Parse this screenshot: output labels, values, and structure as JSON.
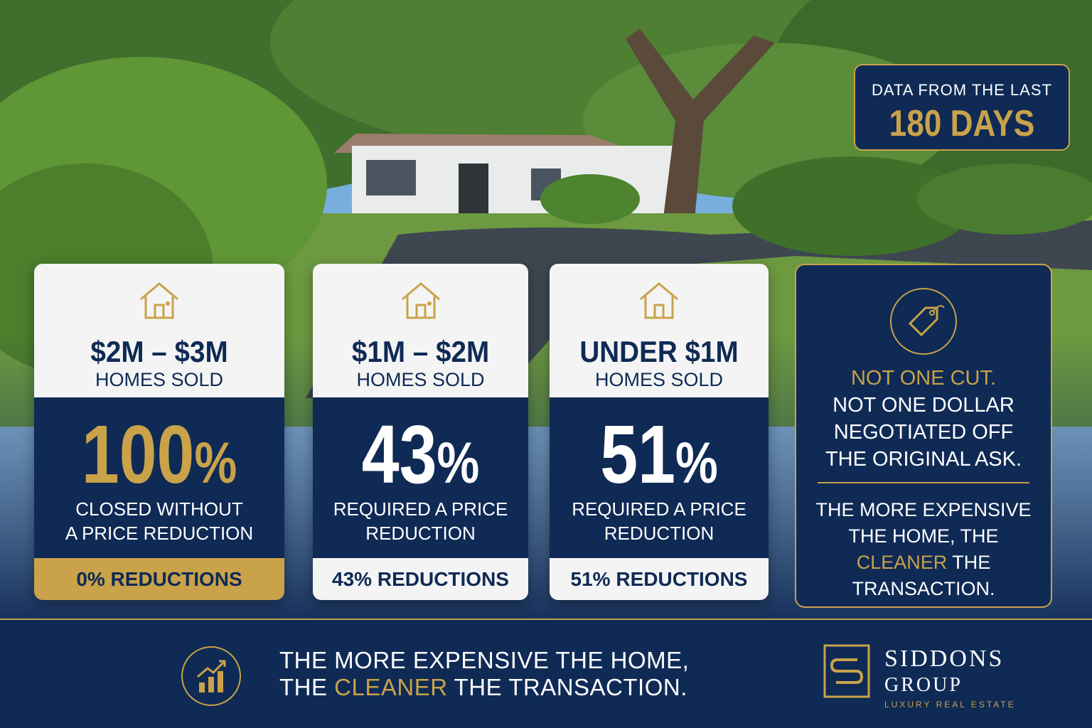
{
  "badge": {
    "line1": "DATA FROM THE LAST",
    "line2": "180 DAYS"
  },
  "cards": [
    {
      "range": "$2M – $3M",
      "sold": "HOMES SOLD",
      "pct": "100",
      "pct_sym": "%",
      "desc1": "CLOSED WITHOUT",
      "desc2": "A PRICE REDUCTION",
      "bottom": "0% REDUCTIONS"
    },
    {
      "range": "$1M – $2M",
      "sold": "HOMES SOLD",
      "pct": "43",
      "pct_sym": "%",
      "desc1": "REQUIRED A PRICE",
      "desc2": "REDUCTION",
      "bottom": "43% REDUCTIONS"
    },
    {
      "range": "UNDER $1M",
      "sold": "HOMES SOLD",
      "pct": "51",
      "pct_sym": "%",
      "desc1": "REQUIRED A PRICE",
      "desc2": "REDUCTION",
      "bottom": "51% REDUCTIONS"
    }
  ],
  "right_card": {
    "line1": "NOT ONE CUT.",
    "line2": "NOT ONE DOLLAR",
    "line3": "NEGOTIATED OFF",
    "line4": "THE ORIGINAL ASK.",
    "s1": "THE MORE EXPENSIVE",
    "s2": "THE HOME, THE",
    "s3a": "CLEANER",
    "s3b": " THE",
    "s4": "TRANSACTION."
  },
  "footer": {
    "l1": "THE MORE EXPENSIVE THE HOME,",
    "l2a": "THE ",
    "l2b": "CLEANER",
    "l2c": " THE TRANSACTION.",
    "brand1": "SIDDONS",
    "brand2": "GROUP",
    "brand3": "LUXURY REAL ESTATE"
  },
  "colors": {
    "navy": "#0f2a55",
    "gold": "#c9a24a",
    "white": "#ffffff",
    "card_bg": "#f4f4f4"
  }
}
